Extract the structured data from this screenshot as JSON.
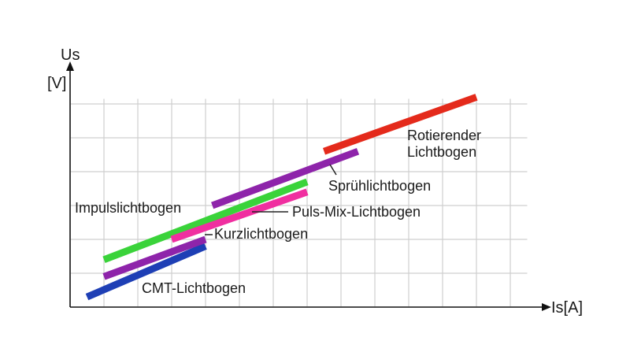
{
  "chart_data": {
    "type": "line",
    "title": "",
    "axes": {
      "y_label_line1": "Us",
      "y_label_line2": "[V]",
      "x_label": "Is[A]",
      "xlim": [
        0,
        14
      ],
      "ylim": [
        0,
        7
      ],
      "grid": true,
      "grid_x_step": 1,
      "grid_y_step": 1
    },
    "series": [
      {
        "name": "CMT-Lichtbogen",
        "color": "#1e3fb5",
        "x": [
          0.5,
          4.0
        ],
        "y": [
          0.3,
          1.8
        ]
      },
      {
        "name": "Kurzlichtbogen",
        "color": "#8e24aa",
        "x": [
          1.0,
          4.0
        ],
        "y": [
          0.9,
          2.0
        ]
      },
      {
        "name": "Impulslichtbogen",
        "color": "#3ad33a",
        "x": [
          1.0,
          7.0
        ],
        "y": [
          1.4,
          3.7
        ]
      },
      {
        "name": "Puls-Mix-Lichtbogen",
        "color": "#f02fa0",
        "x": [
          3.0,
          7.0
        ],
        "y": [
          2.0,
          3.4
        ]
      },
      {
        "name": "Sprühlichtbogen",
        "color": "#8e24aa",
        "x": [
          4.2,
          8.5
        ],
        "y": [
          3.0,
          4.6
        ]
      },
      {
        "name": "Rotierender Lichtbogen",
        "color": "#e42a1b",
        "x": [
          7.5,
          12.0
        ],
        "y": [
          4.6,
          6.2
        ]
      }
    ],
    "labels": {
      "cmt": "CMT-Lichtbogen",
      "kurz": "Kurzlichtbogen",
      "impuls": "Impulslichtbogen",
      "pulsmix": "Puls-Mix-Lichtbogen",
      "spruh": "Sprühlichtbogen",
      "rot_line1": "Rotierender",
      "rot_line2": "Lichtbogen"
    }
  }
}
